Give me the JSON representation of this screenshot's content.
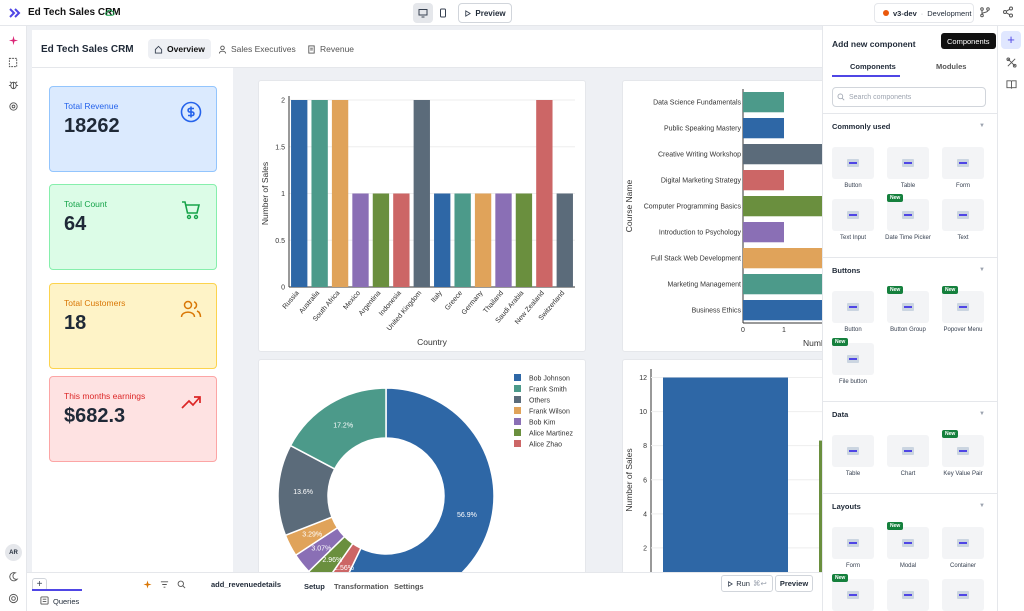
{
  "topbar": {
    "app_name": "Ed Tech Sales CRM",
    "preview_label": "Preview",
    "env_name": "v3-dev",
    "env_stage": "Development"
  },
  "app": {
    "title": "Ed Tech Sales CRM",
    "tabs": [
      {
        "label": "Overview"
      },
      {
        "label": "Sales Executives"
      },
      {
        "label": "Revenue"
      }
    ]
  },
  "kpis": [
    {
      "label": "Total Revenue",
      "value": "18262",
      "color": "#2563eb",
      "bg": "#dbeafe",
      "icon": "dollar-icon"
    },
    {
      "label": "Total Count",
      "value": "64",
      "color": "#16a34a",
      "bg": "#dcfce7",
      "icon": "cart-icon"
    },
    {
      "label": "Total Customers",
      "value": "18",
      "color": "#d97706",
      "bg": "#fef3c7",
      "icon": "users-icon"
    },
    {
      "label": "This months earnings",
      "value": "$682.3",
      "color": "#dc2626",
      "bg": "#fee2e2",
      "icon": "trend-up-icon"
    }
  ],
  "chart_data": [
    {
      "type": "bar",
      "xlabel": "Country",
      "ylabel": "Number of Sales",
      "ylim": [
        0,
        2
      ],
      "yticks": [
        "0",
        "0.5",
        "1",
        "1.5",
        "2"
      ],
      "categories": [
        "Russia",
        "Australia",
        "South Africa",
        "Mexico",
        "Argentina",
        "Indonesia",
        "United Kingdom",
        "Italy",
        "Greece",
        "Germany",
        "Thailand",
        "Saudi Arabia",
        "New Zealand",
        "Switzerland"
      ],
      "values": [
        2,
        2,
        2,
        1,
        1,
        1,
        2,
        1,
        1,
        1,
        1,
        1,
        2,
        1
      ],
      "colors": [
        "#2e67a6",
        "#4c9a8a",
        "#e0a35a",
        "#8a6fb5",
        "#6a8f3e",
        "#cc6666",
        "#5b6b7a",
        "#2e67a6",
        "#4c9a8a",
        "#e0a35a",
        "#8a6fb5",
        "#6a8f3e",
        "#cc6666",
        "#5b6b7a"
      ]
    },
    {
      "type": "bar",
      "orientation": "horizontal",
      "ylabel": "Course Name",
      "xlabel": "Numb",
      "categories": [
        "Data Science Fundamentals",
        "Public Speaking Mastery",
        "Creative Writing Workshop",
        "Digital Marketing Strategy",
        "Computer Programming Basics",
        "Introduction to Psychology",
        "Full Stack Web Development",
        "Marketing Management",
        "Business Ethics"
      ],
      "values": [
        1,
        1,
        2,
        1,
        2,
        1,
        2,
        2,
        2
      ],
      "xticks": [
        "0",
        "1"
      ],
      "colors": [
        "#4c9a8a",
        "#2e67a6",
        "#5b6b7a",
        "#cc6666",
        "#6a8f3e",
        "#8a6fb5",
        "#e0a35a",
        "#4c9a8a",
        "#2e67a6"
      ]
    },
    {
      "type": "pie",
      "donut": true,
      "slices": [
        {
          "name": "Bob Johnson",
          "value": 56.9,
          "label": "56.9%",
          "color": "#2e67a6"
        },
        {
          "name": "Alice Zhao",
          "value": 2.56,
          "label": "2.56%",
          "color": "#cc6666"
        },
        {
          "name": "Alice Martinez",
          "value": 2.96,
          "label": "2.96%",
          "color": "#6a8f3e"
        },
        {
          "name": "Bob Kim",
          "value": 3.07,
          "label": "3.07%",
          "color": "#8a6fb5"
        },
        {
          "name": "Frank Wilson",
          "value": 3.29,
          "label": "3.29%",
          "color": "#e0a35a"
        },
        {
          "name": "Others",
          "value": 13.6,
          "label": "13.6%",
          "color": "#5b6b7a"
        },
        {
          "name": "Frank Smith",
          "value": 17.2,
          "label": "17.2%",
          "color": "#4c9a8a"
        }
      ],
      "legend": [
        "Bob Johnson",
        "Frank Smith",
        "Others",
        "Frank Wilson",
        "Bob Kim",
        "Alice Martinez",
        "Alice Zhao"
      ]
    },
    {
      "type": "bar",
      "ylabel": "Number of Sales",
      "yticks": [
        "2",
        "4",
        "6",
        "8",
        "10",
        "12"
      ],
      "ylim": [
        0,
        12.5
      ],
      "values": [
        12
      ],
      "colors": [
        "#2e67a6"
      ]
    }
  ],
  "bottombar": {
    "query_name": "add_revenuedetails",
    "tab_setup": "Setup",
    "tab_transformation": "Transformation",
    "tab_settings": "Settings",
    "run_label": "Run",
    "run_shortcut": "⌘↩",
    "preview_label": "Preview",
    "queries_label": "Queries"
  },
  "components_panel": {
    "title": "Add new component",
    "tooltip": "Components",
    "tab_components": "Components",
    "tab_modules": "Modules",
    "search_placeholder": "Search components",
    "sections": [
      {
        "title": "Commonly used",
        "items": [
          {
            "label": "Button",
            "new": false
          },
          {
            "label": "Table",
            "new": false
          },
          {
            "label": "Form",
            "new": false
          },
          {
            "label": "Text Input",
            "new": false
          },
          {
            "label": "Date Time Picker",
            "new": true
          },
          {
            "label": "Text",
            "new": false
          }
        ]
      },
      {
        "title": "Buttons",
        "items": [
          {
            "label": "Button",
            "new": false
          },
          {
            "label": "Button Group",
            "new": true
          },
          {
            "label": "Popover Menu",
            "new": true
          },
          {
            "label": "File button",
            "new": true
          }
        ]
      },
      {
        "title": "Data",
        "items": [
          {
            "label": "Table",
            "new": false
          },
          {
            "label": "Chart",
            "new": false
          },
          {
            "label": "Key Value Pair",
            "new": true
          }
        ]
      },
      {
        "title": "Layouts",
        "items": [
          {
            "label": "Form",
            "new": false
          },
          {
            "label": "Modal",
            "new": true
          },
          {
            "label": "Container",
            "new": false
          },
          {
            "label": "",
            "new": true
          },
          {
            "label": "",
            "new": false
          },
          {
            "label": "",
            "new": false
          }
        ]
      }
    ],
    "new_badge": "New"
  },
  "user": {
    "initials": "AR"
  }
}
